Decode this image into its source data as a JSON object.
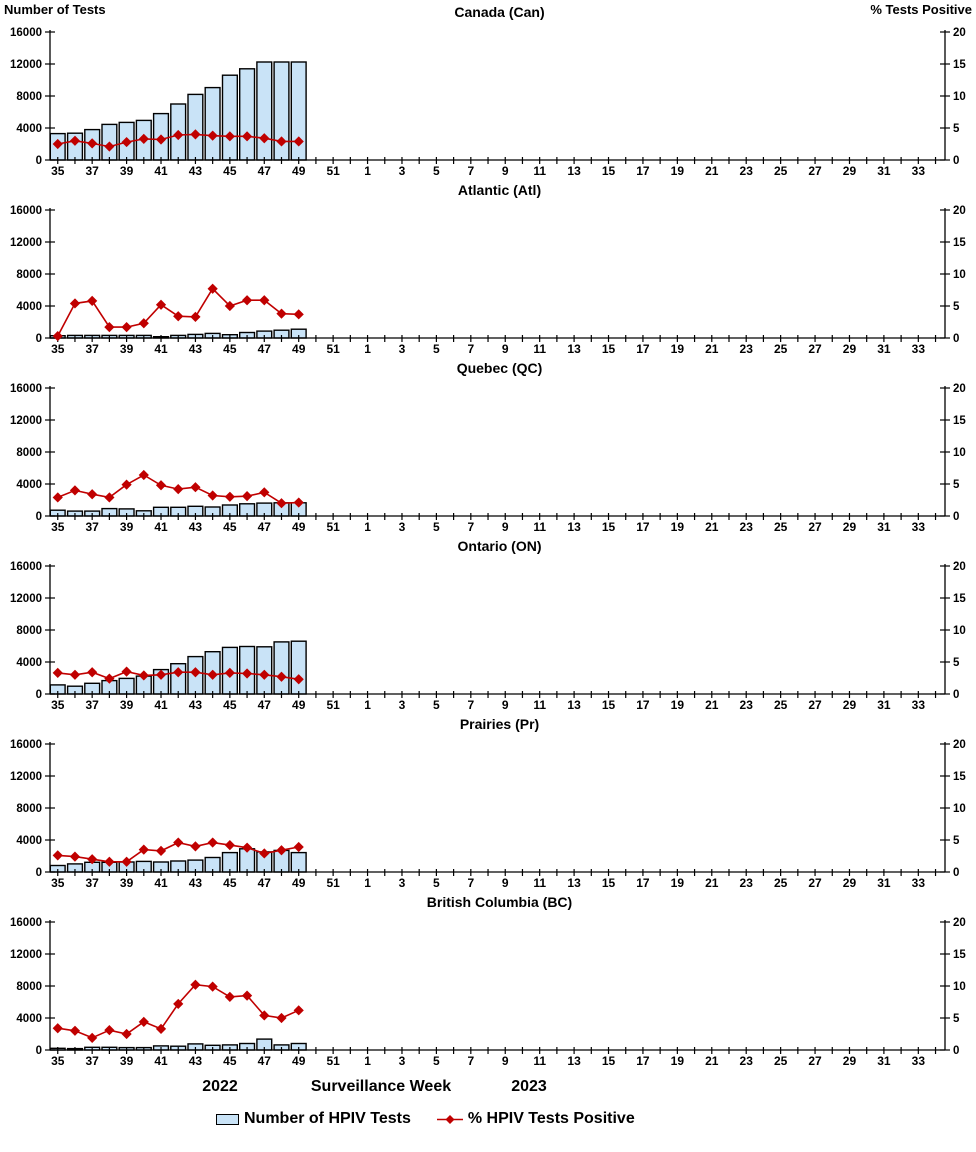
{
  "header": {
    "left_axis_title": "Number of Tests",
    "right_axis_title": "% Tests Positive"
  },
  "footer": {
    "year_left": "2022",
    "axis_title": "Surveillance Week",
    "year_right": "2023"
  },
  "legend": {
    "bar_label": "Number of HPIV Tests",
    "line_label": "% HPIV Tests Positive"
  },
  "colors": {
    "bar_fill": "#C9E3F7",
    "bar_stroke": "#000000",
    "line": "#C00000",
    "axis": "#000000",
    "text": "#000000"
  },
  "axes": {
    "left": {
      "ticks": [
        0,
        4000,
        8000,
        12000,
        16000
      ],
      "max": 16000
    },
    "right": {
      "ticks": [
        0,
        5,
        10,
        15,
        20
      ],
      "max": 20
    },
    "x": {
      "weeks": [
        35,
        36,
        37,
        38,
        39,
        40,
        41,
        42,
        43,
        44,
        45,
        46,
        47,
        48,
        49,
        50,
        51,
        52,
        1,
        2,
        3,
        4,
        5,
        6,
        7,
        8,
        9,
        10,
        11,
        12,
        13,
        14,
        15,
        16,
        17,
        18,
        19,
        20,
        21,
        22,
        23,
        24,
        25,
        26,
        27,
        28,
        29,
        30,
        31,
        32,
        33,
        34
      ],
      "labeled_weeks": [
        35,
        37,
        39,
        41,
        43,
        45,
        47,
        49,
        51,
        1,
        3,
        5,
        7,
        9,
        11,
        13,
        15,
        17,
        19,
        21,
        23,
        25,
        27,
        29,
        31,
        33
      ]
    }
  },
  "chart_data": [
    {
      "type": "bar+line",
      "title": "Canada (Can)",
      "weeks": [
        35,
        36,
        37,
        38,
        39,
        40,
        41,
        42,
        43,
        44,
        45,
        46,
        47,
        48,
        49
      ],
      "tests": [
        3300,
        3350,
        3800,
        4450,
        4700,
        4950,
        5800,
        7000,
        8200,
        9050,
        10600,
        11400,
        12250,
        12250,
        12250
      ],
      "pct_positive": [
        2.5,
        3.0,
        2.6,
        2.1,
        2.8,
        3.3,
        3.2,
        3.9,
        4.0,
        3.8,
        3.7,
        3.7,
        3.4,
        2.9,
        2.9
      ]
    },
    {
      "type": "bar+line",
      "title": "Atlantic (Atl)",
      "weeks": [
        35,
        36,
        37,
        38,
        39,
        40,
        41,
        42,
        43,
        44,
        45,
        46,
        47,
        48,
        49
      ],
      "tests": [
        290,
        330,
        330,
        330,
        330,
        330,
        160,
        330,
        450,
        570,
        410,
        690,
        860,
        980,
        1100
      ],
      "pct_positive": [
        0.3,
        5.4,
        5.8,
        1.7,
        1.7,
        2.3,
        5.2,
        3.4,
        3.3,
        7.7,
        5.0,
        5.9,
        5.9,
        3.8,
        3.7
      ]
    },
    {
      "type": "bar+line",
      "title": "Quebec (QC)",
      "weeks": [
        35,
        36,
        37,
        38,
        39,
        40,
        41,
        42,
        43,
        44,
        45,
        46,
        47,
        48,
        49
      ],
      "tests": [
        730,
        610,
        610,
        930,
        890,
        650,
        1090,
        1090,
        1210,
        1130,
        1370,
        1530,
        1610,
        1650,
        1650
      ],
      "pct_positive": [
        2.9,
        4.0,
        3.4,
        2.9,
        4.9,
        6.4,
        4.8,
        4.2,
        4.5,
        3.2,
        3.0,
        3.1,
        3.7,
        2.0,
        2.1
      ]
    },
    {
      "type": "bar+line",
      "title": "Ontario (ON)",
      "weeks": [
        35,
        36,
        37,
        38,
        39,
        40,
        41,
        42,
        43,
        44,
        45,
        46,
        47,
        48,
        49
      ],
      "tests": [
        1140,
        980,
        1340,
        1670,
        1950,
        2240,
        3050,
        3790,
        4680,
        5290,
        5820,
        5940,
        5900,
        6510,
        6600
      ],
      "pct_positive": [
        3.3,
        3.0,
        3.4,
        2.4,
        3.5,
        2.9,
        3.0,
        3.4,
        3.4,
        3.0,
        3.3,
        3.2,
        3.0,
        2.7,
        2.3
      ]
    },
    {
      "type": "bar+line",
      "title": "Prairies (Pr)",
      "weeks": [
        35,
        36,
        37,
        38,
        39,
        40,
        41,
        42,
        43,
        44,
        45,
        46,
        47,
        48,
        49
      ],
      "tests": [
        810,
        1010,
        1210,
        1210,
        1250,
        1330,
        1250,
        1370,
        1490,
        1810,
        2420,
        2900,
        2510,
        2700,
        2420
      ],
      "pct_positive": [
        2.6,
        2.4,
        2.0,
        1.6,
        1.6,
        3.5,
        3.3,
        4.6,
        4.0,
        4.6,
        4.2,
        3.8,
        2.9,
        3.4,
        3.9
      ]
    },
    {
      "type": "bar+line",
      "title": "British Columbia (BC)",
      "weeks": [
        35,
        36,
        37,
        38,
        39,
        40,
        41,
        42,
        43,
        44,
        45,
        46,
        47,
        48,
        49
      ],
      "tests": [
        210,
        170,
        340,
        340,
        300,
        300,
        510,
        470,
        760,
        590,
        640,
        810,
        1360,
        640,
        810
      ],
      "pct_positive": [
        3.4,
        3.0,
        1.9,
        3.1,
        2.5,
        4.4,
        3.3,
        7.2,
        10.2,
        9.9,
        8.3,
        8.5,
        5.4,
        5.0,
        6.2
      ]
    }
  ]
}
